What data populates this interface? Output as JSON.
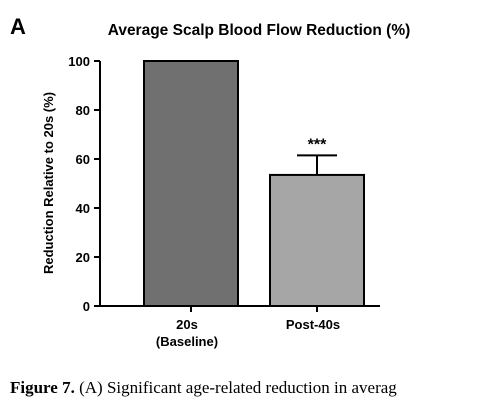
{
  "panel_letter": "A",
  "caption": {
    "label": "Figure 7.",
    "text": "(A) Significant age-related reduction in averag"
  },
  "chart_data": {
    "type": "bar",
    "title": "Average Scalp Blood Flow Reduction (%)",
    "ylabel": "Reduction Relative to 20s (%)",
    "xlabel": "",
    "ylim": [
      0,
      100
    ],
    "yticks": [
      0,
      20,
      40,
      60,
      80,
      100
    ],
    "categories": [
      [
        "20s",
        "(Baseline)"
      ],
      [
        "Post-40s"
      ]
    ],
    "values": [
      100,
      53.5
    ],
    "error_upper": [
      null,
      61.5
    ],
    "significance": [
      "",
      "***"
    ],
    "bar_colors": [
      "#707070",
      "#a6a6a6"
    ],
    "grid": false,
    "legend": "none"
  }
}
